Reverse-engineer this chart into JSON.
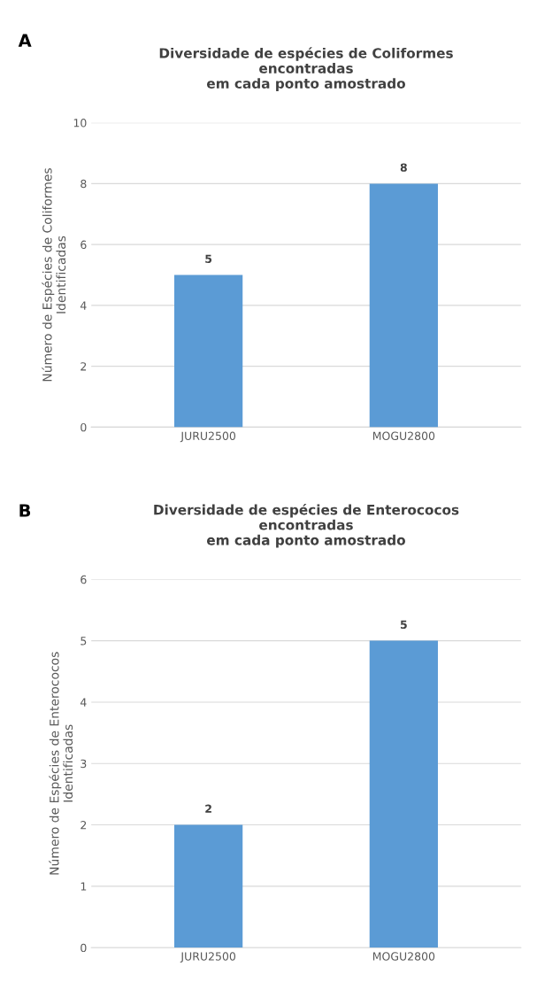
{
  "chart_data": [
    {
      "type": "bar",
      "title": "Diversidade de espécies de Coliformes\nencontradas\nem cada ponto amostrado",
      "ylabel": "Número de Espécies de Coliformes\nIdentificadas",
      "annotations": [
        "A"
      ],
      "categories": [
        "JURU2500",
        "MOGU2800"
      ],
      "values": [
        5,
        8
      ],
      "color": "#5b9bd5",
      "ylim": [
        0,
        10
      ],
      "yticks": [
        0,
        2,
        4,
        6,
        8,
        10
      ],
      "grid": "y",
      "data_labels": true
    },
    {
      "type": "bar",
      "title": "Diversidade de espécies de Enterococos\nencontradas\nem cada ponto amostrado",
      "ylabel": "Número de Espécies de Enterococos\nIdentificadas",
      "annotations": [
        "B"
      ],
      "categories": [
        "JURU2500",
        "MOGU2800"
      ],
      "values": [
        2,
        5
      ],
      "color": "#5b9bd5",
      "ylim": [
        0,
        6
      ],
      "yticks": [
        0,
        1,
        2,
        3,
        4,
        5,
        6
      ],
      "grid": "y",
      "data_labels": true
    }
  ]
}
